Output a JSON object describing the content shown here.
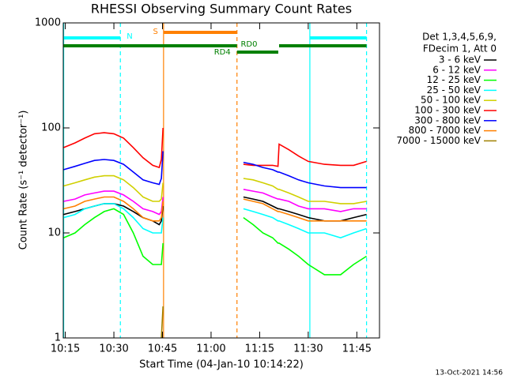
{
  "chart_data": {
    "type": "line",
    "title": "RHESSI Observing Summary Count Rates",
    "xlabel": "Start Time (04-Jan-10 10:14:22)",
    "ylabel": "Count Rate (s⁻¹ detector⁻¹)",
    "legend_header": [
      "Det 1,3,4,5,6,9,",
      "FDecim 1, Att 0"
    ],
    "footer": "13-Oct-2021 14:56",
    "log_y": true,
    "xlim": [
      "10:14:22",
      "11:52"
    ],
    "xticks": [
      "10:15",
      "10:30",
      "10:45",
      "11:00",
      "11:15",
      "11:30",
      "11:45"
    ],
    "ylim": [
      1,
      1000
    ],
    "yticks": [
      1,
      10,
      100,
      1000
    ],
    "x": [
      "10:14:30",
      "10:18",
      "10:21",
      "10:24",
      "10:27",
      "10:30",
      "10:33",
      "10:36",
      "10:39",
      "10:42",
      "10:44",
      "10:44:40",
      "10:45:10",
      "11:00",
      "11:10",
      "11:13",
      "11:16",
      "11:19",
      "11:20:40",
      "11:21",
      "11:24",
      "11:27",
      "11:30",
      "11:35",
      "11:40",
      "11:44",
      "11:48"
    ],
    "series": [
      {
        "name": "3 - 6 keV",
        "color": "#000000",
        "values": [
          15,
          16,
          17,
          18,
          19,
          19,
          18,
          16,
          14,
          13,
          12,
          13,
          18,
          null,
          22,
          21,
          20,
          18,
          17,
          17,
          16,
          15,
          14,
          13,
          13,
          14,
          15
        ]
      },
      {
        "name": "6 - 12 keV",
        "color": "#ff00ff",
        "values": [
          20,
          21,
          23,
          24,
          25,
          25,
          23,
          20,
          17,
          16,
          15,
          16,
          22,
          null,
          26,
          25,
          24,
          22,
          21,
          21,
          20,
          18,
          17,
          17,
          16,
          17,
          17
        ]
      },
      {
        "name": "12 - 25 keV",
        "color": "#00ff00",
        "values": [
          9,
          10,
          12,
          14,
          16,
          17,
          15,
          10,
          6,
          5,
          5,
          5,
          8,
          null,
          14,
          12,
          10,
          9,
          8,
          8,
          7,
          6,
          5,
          4,
          4,
          5,
          6
        ]
      },
      {
        "name": "25 - 50 keV",
        "color": "#00ffff",
        "values": [
          14,
          15,
          17,
          18,
          19,
          19,
          17,
          14,
          11,
          10,
          10,
          10,
          14,
          null,
          17,
          16,
          15,
          14,
          13,
          13,
          12,
          11,
          10,
          10,
          9,
          10,
          11
        ]
      },
      {
        "name": "50 - 100 keV",
        "color": "#d0d000",
        "values": [
          28,
          30,
          32,
          34,
          35,
          35,
          32,
          27,
          22,
          20,
          20,
          21,
          30,
          null,
          33,
          32,
          30,
          28,
          26,
          26,
          24,
          22,
          20,
          20,
          19,
          19,
          20
        ]
      },
      {
        "name": "100 - 300 keV",
        "color": "#ff0000",
        "values": [
          65,
          72,
          80,
          88,
          90,
          88,
          80,
          65,
          52,
          44,
          42,
          50,
          100,
          null,
          45,
          44,
          44,
          44,
          43,
          70,
          62,
          54,
          48,
          45,
          44,
          44,
          48
        ]
      },
      {
        "name": "300 - 800 keV",
        "color": "#0000ff",
        "values": [
          40,
          43,
          46,
          49,
          50,
          49,
          45,
          38,
          32,
          30,
          29,
          33,
          60,
          null,
          47,
          45,
          42,
          40,
          38,
          38,
          35,
          32,
          30,
          28,
          27,
          27,
          27
        ]
      },
      {
        "name": "800 - 7000 keV",
        "color": "#ff8000",
        "values": [
          17,
          18,
          20,
          21,
          22,
          22,
          20,
          17,
          14,
          13,
          13,
          14,
          20,
          null,
          21,
          20,
          19,
          17,
          16,
          16,
          15,
          14,
          13,
          13,
          13,
          13,
          13
        ]
      },
      {
        "name": "7000 - 15000 keV",
        "color": "#a08000",
        "values": [
          null,
          null,
          null,
          null,
          null,
          null,
          null,
          null,
          null,
          null,
          null,
          1,
          2,
          null,
          null,
          null,
          null,
          null,
          null,
          null,
          null,
          null,
          null,
          null,
          null,
          null,
          null
        ]
      }
    ],
    "bars": [
      {
        "label": "N",
        "color": "#00ffff",
        "start": "10:14:30",
        "end": "10:32"
      },
      {
        "color": "#00ffff",
        "start": "11:30:30",
        "end": "11:48"
      },
      {
        "label": "S",
        "color": "#ff8000",
        "start": "10:45:20",
        "end": "11:08"
      },
      {
        "color": "#008000",
        "start": "10:14:30",
        "end": "11:08"
      },
      {
        "label": "RD4",
        "color": "#008000",
        "start": "11:08",
        "end": "11:20:45"
      },
      {
        "label": "RD0",
        "color": "#008000",
        "start": "11:21",
        "end": "11:48"
      }
    ],
    "vlines": [
      {
        "time": "10:14:30",
        "color": "#00ffff",
        "style": "solid"
      },
      {
        "time": "10:32",
        "color": "#00ffff",
        "style": "dashed"
      },
      {
        "time": "10:45:20",
        "color": "#ff8000",
        "style": "solid"
      },
      {
        "time": "11:08",
        "color": "#ff8000",
        "style": "dashed"
      },
      {
        "time": "11:30:30",
        "color": "#00ffff",
        "style": "solid"
      },
      {
        "time": "11:48",
        "color": "#00ffff",
        "style": "dashed"
      }
    ]
  }
}
